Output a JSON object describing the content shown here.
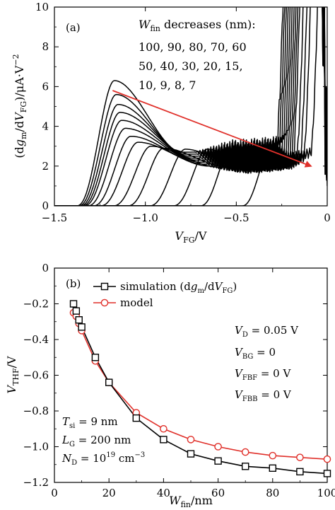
{
  "chart_data": [
    {
      "panel": "(a)",
      "type": "line",
      "xlabel": "V_FG/V",
      "ylabel": "(dg_m/dV_FG)/μA·V^-2",
      "xlim": [
        -1.5,
        0
      ],
      "ylim": [
        0,
        10
      ],
      "xticks": [
        -1.5,
        -1.0,
        -0.5,
        0
      ],
      "xtick_labels": [
        "−1.5",
        "−1.0",
        "−0.5",
        "0"
      ],
      "yticks": [
        0,
        2,
        4,
        6,
        8,
        10
      ],
      "ytick_labels": [
        "0",
        "2",
        "4",
        "6",
        "8",
        "10"
      ],
      "legend_title": "W_fin decreases (nm):",
      "legend_lines": [
        "100, 90, 80, 70, 60",
        "50, 40, 30, 20, 15,",
        "10, 9, 8, 7"
      ],
      "arrow_color": "#e0302a",
      "arrow": {
        "from": [
          -1.18,
          5.8
        ],
        "to": [
          -0.09,
          2.0
        ]
      },
      "series": [
        {
          "wfin": 100,
          "rise": -1.33,
          "peak_x": -1.17,
          "peak_y": 6.3,
          "min_x": -0.8,
          "min_y": 2.7,
          "climb": -0.28,
          "wobble": 0.55
        },
        {
          "wfin": 90,
          "rise": -1.32,
          "peak_x": -1.16,
          "peak_y": 5.6,
          "min_x": -0.78,
          "min_y": 2.6,
          "climb": -0.27,
          "wobble": 0.55
        },
        {
          "wfin": 80,
          "rise": -1.31,
          "peak_x": -1.15,
          "peak_y": 5.1,
          "min_x": -0.76,
          "min_y": 2.5,
          "climb": -0.26,
          "wobble": 0.5
        },
        {
          "wfin": 70,
          "rise": -1.3,
          "peak_x": -1.14,
          "peak_y": 4.7,
          "min_x": -0.74,
          "min_y": 2.4,
          "climb": -0.25,
          "wobble": 0.5
        },
        {
          "wfin": 60,
          "rise": -1.29,
          "peak_x": -1.13,
          "peak_y": 4.3,
          "min_x": -0.72,
          "min_y": 2.3,
          "climb": -0.24,
          "wobble": 0.45
        },
        {
          "wfin": 50,
          "rise": -1.27,
          "peak_x": -1.11,
          "peak_y": 3.9,
          "min_x": -0.7,
          "min_y": 2.2,
          "climb": -0.23,
          "wobble": 0.45
        },
        {
          "wfin": 40,
          "rise": -1.24,
          "peak_x": -1.08,
          "peak_y": 3.5,
          "min_x": -0.68,
          "min_y": 2.1,
          "climb": -0.22,
          "wobble": 0.4
        },
        {
          "wfin": 30,
          "rise": -1.2,
          "peak_x": -1.04,
          "peak_y": 3.2,
          "min_x": -0.65,
          "min_y": 2.0,
          "climb": -0.21,
          "wobble": 0.4
        },
        {
          "wfin": 20,
          "rise": -1.13,
          "peak_x": -0.97,
          "peak_y": 3.0,
          "min_x": -0.6,
          "min_y": 1.95,
          "climb": -0.2,
          "wobble": 0.35
        },
        {
          "wfin": 15,
          "rise": -1.05,
          "peak_x": -0.9,
          "peak_y": 2.9,
          "min_x": -0.55,
          "min_y": 1.95,
          "climb": -0.19,
          "wobble": 0.35
        },
        {
          "wfin": 10,
          "rise": -0.93,
          "peak_x": -0.78,
          "peak_y": 2.85,
          "min_x": -0.47,
          "min_y": 2.0,
          "climb": -0.17,
          "wobble": 0.3
        },
        {
          "wfin": 9,
          "rise": -0.8,
          "peak_x": -0.66,
          "peak_y": 2.85,
          "min_x": -0.4,
          "min_y": 2.1,
          "climb": -0.15,
          "wobble": 0.3
        },
        {
          "wfin": 8,
          "rise": -0.65,
          "peak_x": -0.53,
          "peak_y": 2.85,
          "min_x": -0.33,
          "min_y": 2.2,
          "climb": -0.13,
          "wobble": 0.25
        },
        {
          "wfin": 7,
          "rise": -0.42,
          "peak_x": -0.31,
          "peak_y": 2.9,
          "min_x": -0.2,
          "min_y": 2.5,
          "climb": -0.09,
          "wobble": 0.25
        }
      ]
    },
    {
      "panel": "(b)",
      "type": "line",
      "xlabel": "W_fin/nm",
      "ylabel": "V_THF/V",
      "xlim": [
        0,
        100
      ],
      "ylim": [
        -1.2,
        0
      ],
      "xticks": [
        0,
        20,
        40,
        60,
        80,
        100
      ],
      "xtick_labels": [
        "0",
        "20",
        "40",
        "60",
        "80",
        "100"
      ],
      "yticks": [
        0,
        -0.2,
        -0.4,
        -0.6,
        -0.8,
        -1.0,
        -1.2
      ],
      "ytick_labels": [
        "0",
        "−0.2",
        "−0.4",
        "−0.6",
        "−0.8",
        "−1.0",
        "−1.2"
      ],
      "legend": [
        "simulation (dg_m/dV_FG)",
        "model"
      ],
      "series": [
        {
          "name": "simulation",
          "color": "#000000",
          "marker": "square",
          "x": [
            7,
            8,
            9,
            10,
            15,
            20,
            30,
            40,
            50,
            60,
            70,
            80,
            90,
            100
          ],
          "y": [
            -0.2,
            -0.24,
            -0.29,
            -0.33,
            -0.5,
            -0.64,
            -0.84,
            -0.96,
            -1.04,
            -1.08,
            -1.11,
            -1.12,
            -1.14,
            -1.15
          ]
        },
        {
          "name": "model",
          "color": "#e0302a",
          "marker": "circle",
          "x": [
            7,
            8,
            9,
            10,
            15,
            20,
            30,
            40,
            50,
            60,
            70,
            80,
            90,
            100
          ],
          "y": [
            -0.25,
            -0.27,
            -0.31,
            -0.35,
            -0.52,
            -0.64,
            -0.81,
            -0.9,
            -0.96,
            -1.0,
            -1.03,
            -1.05,
            -1.06,
            -1.07
          ]
        }
      ],
      "annotations_right": [
        "V_D = 0.05 V",
        "V_BG = 0",
        "V_FBF = 0 V",
        "V_FBB = 0 V"
      ],
      "annotations_left": [
        "T_si = 9 nm",
        "L_G = 200 nm",
        "N_D = 10^19 cm^-3"
      ]
    }
  ]
}
